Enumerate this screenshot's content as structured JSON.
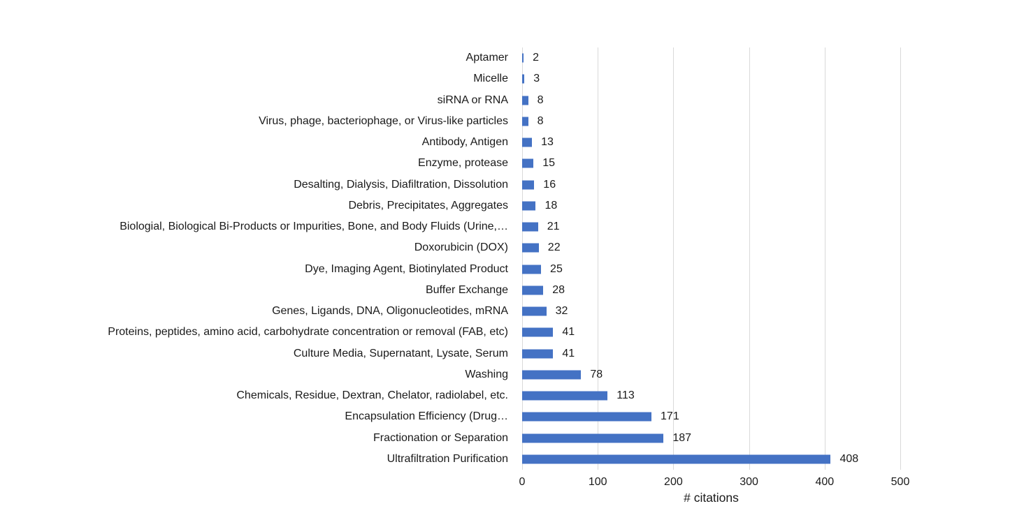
{
  "chart_data": {
    "type": "bar",
    "orientation": "horizontal",
    "title": "",
    "xlabel": "# citations",
    "ylabel": "",
    "xlim": [
      0,
      500
    ],
    "x_ticks": [
      0,
      100,
      200,
      300,
      400,
      500
    ],
    "grid": "vertical-only",
    "legend": "none",
    "categories": [
      "Aptamer",
      "Micelle",
      "siRNA or RNA",
      "Virus, phage, bacteriophage, or Virus-like particles",
      "Antibody, Antigen",
      "Enzyme, protease",
      "Desalting, Dialysis, Diafiltration, Dissolution",
      "Debris, Precipitates, Aggregates",
      "Biologial, Biological Bi-Products or Impurities, Bone, and Body Fluids (Urine,…",
      "Doxorubicin (DOX)",
      "Dye, Imaging Agent, Biotinylated Product",
      "Buffer Exchange",
      "Genes, Ligands, DNA, Oligonucleotides, mRNA",
      "Proteins, peptides, amino acid, carbohydrate concentration or removal (FAB, etc)",
      "Culture Media, Supernatant, Lysate, Serum",
      "Washing",
      "Chemicals, Residue, Dextran, Chelator, radiolabel, etc.",
      "Encapsulation Efficiency (Drug…",
      "Fractionation or Separation",
      "Ultrafiltration Purification"
    ],
    "values": [
      2,
      3,
      8,
      8,
      13,
      15,
      16,
      18,
      21,
      22,
      25,
      28,
      32,
      41,
      41,
      78,
      113,
      171,
      187,
      408
    ],
    "data_labels_shown": true,
    "colors": {
      "bar": "#4472C4",
      "gridline": "#D9D9D9",
      "text": "#1a1a1a"
    }
  }
}
